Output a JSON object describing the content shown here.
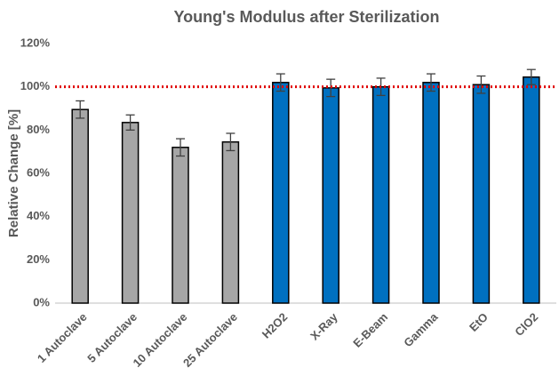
{
  "chart_data": {
    "type": "bar",
    "title": "Young's Modulus after Sterilization",
    "ylabel": "Relative Change [%]",
    "categories": [
      "1 Autoclave",
      "5 Autoclave",
      "10 Autoclave",
      "25 Autoclave",
      "H2O2",
      "X-Ray",
      "E-Beam",
      "Gamma",
      "EtO",
      "ClO2"
    ],
    "values": [
      89.5,
      83.5,
      72,
      74.5,
      102,
      99.5,
      100,
      102,
      101,
      104.5
    ],
    "errors": [
      4,
      3.5,
      4,
      4,
      4,
      4,
      4,
      4,
      4,
      3.5
    ],
    "colors": [
      "#a6a6a6",
      "#a6a6a6",
      "#a6a6a6",
      "#a6a6a6",
      "#0070c0",
      "#0070c0",
      "#0070c0",
      "#0070c0",
      "#0070c0",
      "#0070c0"
    ],
    "reference_line": {
      "value": 100,
      "color": "#e00000"
    },
    "ylim": [
      0,
      120
    ],
    "yticks": [
      {
        "value": 0,
        "label": "0%"
      },
      {
        "value": 20,
        "label": "20%"
      },
      {
        "value": 40,
        "label": "40%"
      },
      {
        "value": 60,
        "label": "60%"
      },
      {
        "value": 80,
        "label": "80%"
      },
      {
        "value": 100,
        "label": "100%"
      },
      {
        "value": 120,
        "label": "120%"
      }
    ],
    "grid": false
  }
}
